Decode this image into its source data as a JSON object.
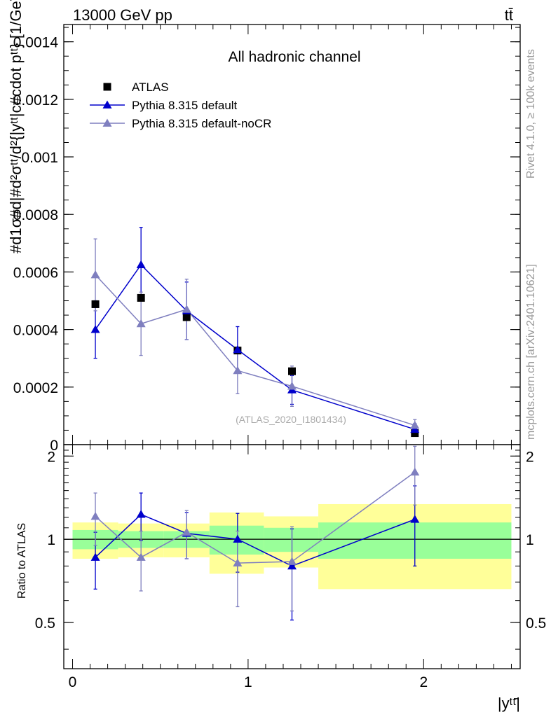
{
  "header": {
    "left": "13000 GeV pp",
    "right": "tt̄"
  },
  "side_labels": {
    "rivet": "Rivet 4.1.0, ≥ 100k events",
    "mcplots": "mcplots.cern.ch [arXiv:2401.10621]"
  },
  "colors": {
    "atlas": "#000000",
    "default": "#0000cc",
    "nocr": "#7f7fbf",
    "band_inner": "#99ff99",
    "band_outer": "#ffff99"
  },
  "chart_data": [
    {
      "type": "scatter",
      "title": "All hadronic channel",
      "ylabel": "#d1σ#d|#d²σᵗᵗ/d²{|yᵗᵗ|c#cdot pᵗᵗ} [1/GeV]",
      "xlabel": "",
      "ylim": [
        0,
        0.00146
      ],
      "xlim": [
        -0.05,
        2.55
      ],
      "ytick_values": [
        0,
        0.0002,
        0.0004,
        0.0006,
        0.0008,
        0.001,
        0.0012,
        0.0014
      ],
      "ytick_labels": [
        "0",
        "0.0002",
        "0.0004",
        "0.0006",
        "0.0008",
        "0.001",
        "0.0012",
        "0.0014"
      ],
      "watermark": "(ATLAS_2020_I1801434)",
      "legend_position": "top-left",
      "x": [
        0.13,
        0.39,
        0.65,
        0.94,
        1.25,
        1.95
      ],
      "series": [
        {
          "name": "ATLAS",
          "values": [
            0.000488,
            0.00051,
            0.000443,
            0.000327,
            0.000255,
            4e-05
          ]
        },
        {
          "name": "Pythia 8.315 default",
          "values": [
            0.0004,
            0.000625,
            0.000465,
            0.00033,
            0.00019,
            5.3e-05
          ],
          "err_low": [
            0.0001,
            0.000115,
            0.0001,
            8e-05,
            5e-05,
            2e-05
          ],
          "err_high": [
            0.0001,
            0.00013,
            0.0001,
            8e-05,
            5e-05,
            2e-05
          ]
        },
        {
          "name": "Pythia 8.315 default-noCR",
          "values": [
            0.00059,
            0.00042,
            0.00047,
            0.000257,
            0.000203,
            6.7e-05
          ],
          "err_low": [
            0.000125,
            0.00011,
            0.000105,
            8e-05,
            7e-05,
            2e-05
          ],
          "err_high": [
            0.000125,
            0.00011,
            0.000105,
            8e-05,
            7e-05,
            2e-05
          ]
        }
      ]
    },
    {
      "type": "scatter",
      "title": "",
      "ylabel": "Ratio to ATLAS",
      "xlabel": "|yᵗᵗ̄|",
      "ylim": [
        0.34,
        2.2
      ],
      "xlim": [
        -0.05,
        2.55
      ],
      "ytick_values": [
        0.5,
        1,
        2
      ],
      "ytick_labels": [
        "0.5",
        "1",
        "2"
      ],
      "xtick_values": [
        0,
        1,
        2
      ],
      "xtick_labels": [
        "0",
        "1",
        "2"
      ],
      "x": [
        0.13,
        0.39,
        0.65,
        0.94,
        1.25,
        1.95
      ],
      "bins": [
        [
          0,
          0.26
        ],
        [
          0.26,
          0.52
        ],
        [
          0.52,
          0.78
        ],
        [
          0.78,
          1.09
        ],
        [
          1.09,
          1.4
        ],
        [
          1.4,
          2.5
        ]
      ],
      "band_inner": [
        [
          0.92,
          1.08
        ],
        [
          0.93,
          1.07
        ],
        [
          0.93,
          1.07
        ],
        [
          0.88,
          1.12
        ],
        [
          0.9,
          1.1
        ],
        [
          0.85,
          1.15
        ]
      ],
      "band_outer": [
        [
          0.85,
          1.15
        ],
        [
          0.86,
          1.14
        ],
        [
          0.86,
          1.14
        ],
        [
          0.75,
          1.25
        ],
        [
          0.79,
          1.21
        ],
        [
          0.66,
          1.34
        ]
      ],
      "series": [
        {
          "name": "Pythia 8.315 default",
          "values": [
            0.86,
            1.23,
            1.05,
            1.0,
            0.8,
            1.18
          ],
          "err_low": [
            0.2,
            0.24,
            0.2,
            0.24,
            0.29,
            0.38
          ],
          "err_high": [
            0.2,
            0.24,
            0.2,
            0.24,
            0.29,
            0.38
          ]
        },
        {
          "name": "Pythia 8.315 default-noCR",
          "values": [
            1.21,
            0.86,
            1.06,
            0.82,
            0.83,
            1.75
          ],
          "err_low": [
            0.26,
            0.21,
            0.21,
            0.25,
            0.28,
            0.42
          ],
          "err_high": [
            0.26,
            0.21,
            0.21,
            0.25,
            0.28,
            0.42
          ]
        }
      ]
    }
  ]
}
